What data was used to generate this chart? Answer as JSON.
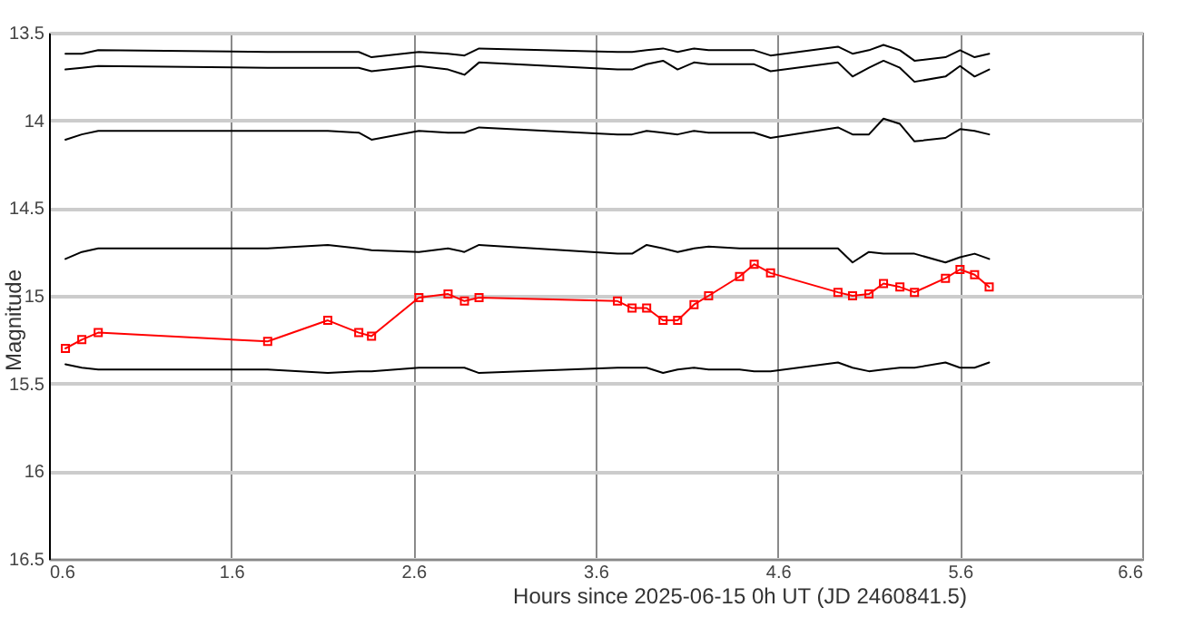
{
  "chart_data": {
    "type": "line",
    "xlabel": "Hours since 2025-06-15 0h UT (JD 2460841.5)",
    "ylabel": "Magnitude",
    "x": [
      0.69,
      0.78,
      0.87,
      1.8,
      2.13,
      2.3,
      2.37,
      2.63,
      2.79,
      2.88,
      2.96,
      3.72,
      3.8,
      3.88,
      3.97,
      4.05,
      4.14,
      4.22,
      4.39,
      4.47,
      4.56,
      4.93,
      5.01,
      5.1,
      5.18,
      5.27,
      5.35,
      5.52,
      5.6,
      5.68,
      5.76
    ],
    "series": [
      {
        "color": "#000000",
        "marker": "none",
        "values": [
          13.62,
          13.62,
          13.6,
          13.61,
          13.61,
          13.61,
          13.64,
          13.61,
          13.62,
          13.63,
          13.59,
          13.61,
          13.61,
          13.6,
          13.59,
          13.61,
          13.59,
          13.6,
          13.6,
          13.6,
          13.63,
          13.58,
          13.62,
          13.6,
          13.57,
          13.6,
          13.66,
          13.64,
          13.6,
          13.64,
          13.62
        ]
      },
      {
        "color": "#000000",
        "marker": "none",
        "values": [
          13.71,
          13.7,
          13.69,
          13.7,
          13.7,
          13.7,
          13.72,
          13.69,
          13.71,
          13.74,
          13.67,
          13.71,
          13.71,
          13.68,
          13.66,
          13.71,
          13.67,
          13.68,
          13.68,
          13.68,
          13.72,
          13.67,
          13.75,
          13.7,
          13.66,
          13.7,
          13.78,
          13.75,
          13.69,
          13.75,
          13.71
        ]
      },
      {
        "color": "#000000",
        "marker": "none",
        "values": [
          14.11,
          14.08,
          14.06,
          14.06,
          14.06,
          14.07,
          14.11,
          14.06,
          14.07,
          14.07,
          14.04,
          14.08,
          14.08,
          14.06,
          14.07,
          14.08,
          14.06,
          14.07,
          14.07,
          14.07,
          14.1,
          14.04,
          14.08,
          14.08,
          13.99,
          14.02,
          14.12,
          14.1,
          14.05,
          14.06,
          14.08
        ]
      },
      {
        "color": "#000000",
        "marker": "none",
        "values": [
          14.79,
          14.75,
          14.73,
          14.73,
          14.71,
          14.73,
          14.74,
          14.75,
          14.73,
          14.75,
          14.71,
          14.76,
          14.76,
          14.71,
          14.73,
          14.75,
          14.73,
          14.72,
          14.73,
          14.73,
          14.73,
          14.73,
          14.81,
          14.75,
          14.76,
          14.76,
          14.76,
          14.81,
          14.78,
          14.76,
          14.79
        ]
      },
      {
        "color": "#000000",
        "marker": "none",
        "values": [
          15.39,
          15.41,
          15.42,
          15.42,
          15.44,
          15.43,
          15.43,
          15.41,
          15.41,
          15.41,
          15.44,
          15.41,
          15.41,
          15.41,
          15.44,
          15.42,
          15.41,
          15.42,
          15.42,
          15.43,
          15.43,
          15.38,
          15.41,
          15.43,
          15.42,
          15.41,
          15.41,
          15.38,
          15.41,
          15.41,
          15.38
        ]
      },
      {
        "color": "#ff0000",
        "marker": "square",
        "values": [
          15.3,
          15.25,
          15.21,
          15.26,
          15.14,
          15.21,
          15.23,
          15.01,
          14.99,
          15.03,
          15.01,
          15.03,
          15.07,
          15.07,
          15.14,
          15.14,
          15.05,
          15.0,
          14.89,
          14.82,
          14.87,
          14.98,
          15.0,
          14.99,
          14.93,
          14.95,
          14.98,
          14.9,
          14.85,
          14.88,
          14.95
        ]
      }
    ],
    "xlim": [
      0.6,
      6.6
    ],
    "xticks": [
      0.6,
      1.6,
      2.6,
      3.6,
      4.6,
      5.6,
      6.6
    ],
    "ylim": [
      16.5,
      13.5
    ],
    "yticks": [
      13.5,
      14,
      14.5,
      15,
      15.5,
      16,
      16.5
    ],
    "grid": true
  }
}
